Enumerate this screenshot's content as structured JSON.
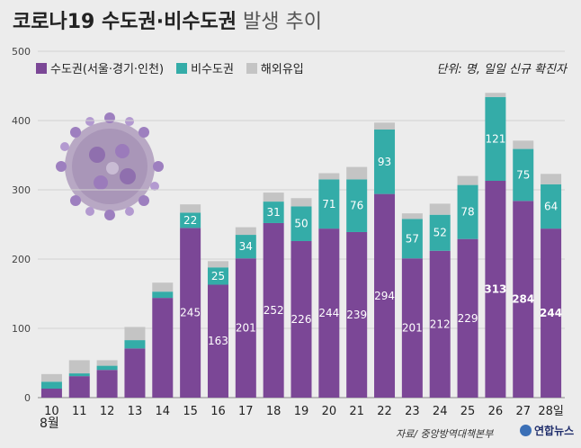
{
  "title": {
    "main": "코로나19 수도권·비수도권",
    "sub": "발생 추이"
  },
  "unit_note": "단위: 명, 일일 신규 확진자",
  "source": "자료/ 중앙방역대책본부",
  "logo": "연합뉴스",
  "month_label": "8월",
  "colors": {
    "capital": "#7b4796",
    "non_capital": "#34aca8",
    "overseas": "#c4c4c4",
    "background": "#ececec"
  },
  "chart_data": {
    "type": "bar",
    "stacked": true,
    "categories": [
      "10",
      "11",
      "12",
      "13",
      "14",
      "15",
      "16",
      "17",
      "18",
      "19",
      "20",
      "21",
      "22",
      "23",
      "24",
      "25",
      "26",
      "27",
      "28일"
    ],
    "series": [
      {
        "name": "수도권(서울·경기·인천)",
        "values": [
          13,
          31,
          40,
          71,
          144,
          245,
          163,
          201,
          252,
          226,
          244,
          239,
          294,
          201,
          212,
          229,
          313,
          284,
          244
        ],
        "labels": [
          "",
          "",
          "",
          "",
          "",
          "245",
          "163",
          "201",
          "252",
          "226",
          "244",
          "239",
          "294",
          "201",
          "212",
          "229",
          "313",
          "284",
          "244"
        ]
      },
      {
        "name": "비수도권",
        "values": [
          10,
          4,
          6,
          12,
          9,
          22,
          25,
          34,
          31,
          50,
          71,
          76,
          93,
          57,
          52,
          78,
          121,
          75,
          64
        ],
        "labels": [
          "",
          "",
          "",
          "",
          "",
          "22",
          "25",
          "34",
          "31",
          "50",
          "71",
          "76",
          "93",
          "57",
          "52",
          "78",
          "121",
          "75",
          "64"
        ]
      },
      {
        "name": "해외유입",
        "values": [
          11,
          19,
          8,
          19,
          13,
          12,
          9,
          11,
          13,
          12,
          9,
          18,
          10,
          8,
          16,
          13,
          6,
          12,
          15
        ],
        "labels": [
          "",
          "",
          "",
          "",
          "",
          "",
          "",
          "",
          "",
          "",
          "",
          "",
          "",
          "",
          "",
          "",
          "",
          "",
          ""
        ]
      }
    ],
    "y_ticks": [
      "0",
      "100",
      "200",
      "300",
      "400",
      "500"
    ],
    "ylim": [
      0,
      500
    ],
    "grid": true,
    "legend": "top-left"
  }
}
